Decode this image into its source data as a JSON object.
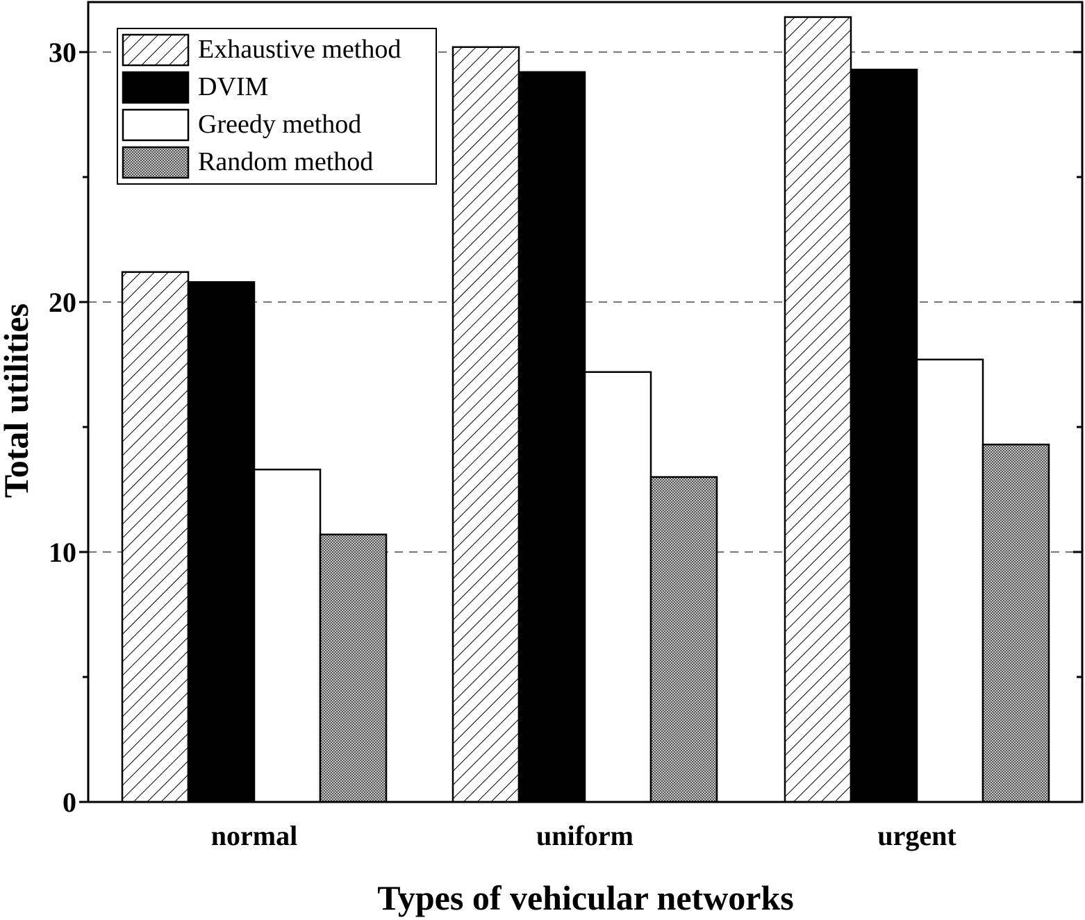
{
  "chart_data": {
    "type": "bar",
    "title": "",
    "xlabel": "Types of vehicular networks",
    "ylabel": "Total utilities",
    "categories": [
      "normal",
      "uniform",
      "urgent"
    ],
    "ylim": [
      0,
      32
    ],
    "yticks": [
      0,
      10,
      20,
      30
    ],
    "grid": "dashed horizontal lines at 10, 20, 30",
    "legend_position": "top-left",
    "series": [
      {
        "name": "Exhaustive method",
        "pattern": "hatch",
        "values": [
          21.2,
          30.2,
          31.4
        ]
      },
      {
        "name": "DVIM",
        "pattern": "solid-black",
        "values": [
          20.8,
          29.2,
          29.3
        ]
      },
      {
        "name": "Greedy method",
        "pattern": "white",
        "values": [
          13.3,
          17.2,
          17.7
        ]
      },
      {
        "name": "Random method",
        "pattern": "gray-dots",
        "values": [
          10.7,
          13.0,
          14.3
        ]
      }
    ]
  },
  "colors": {
    "axis": "#000000",
    "grid": "#777777",
    "dvim_fill": "#000000",
    "greedy_fill": "#ffffff",
    "random_fill": "#9a9a9a"
  }
}
